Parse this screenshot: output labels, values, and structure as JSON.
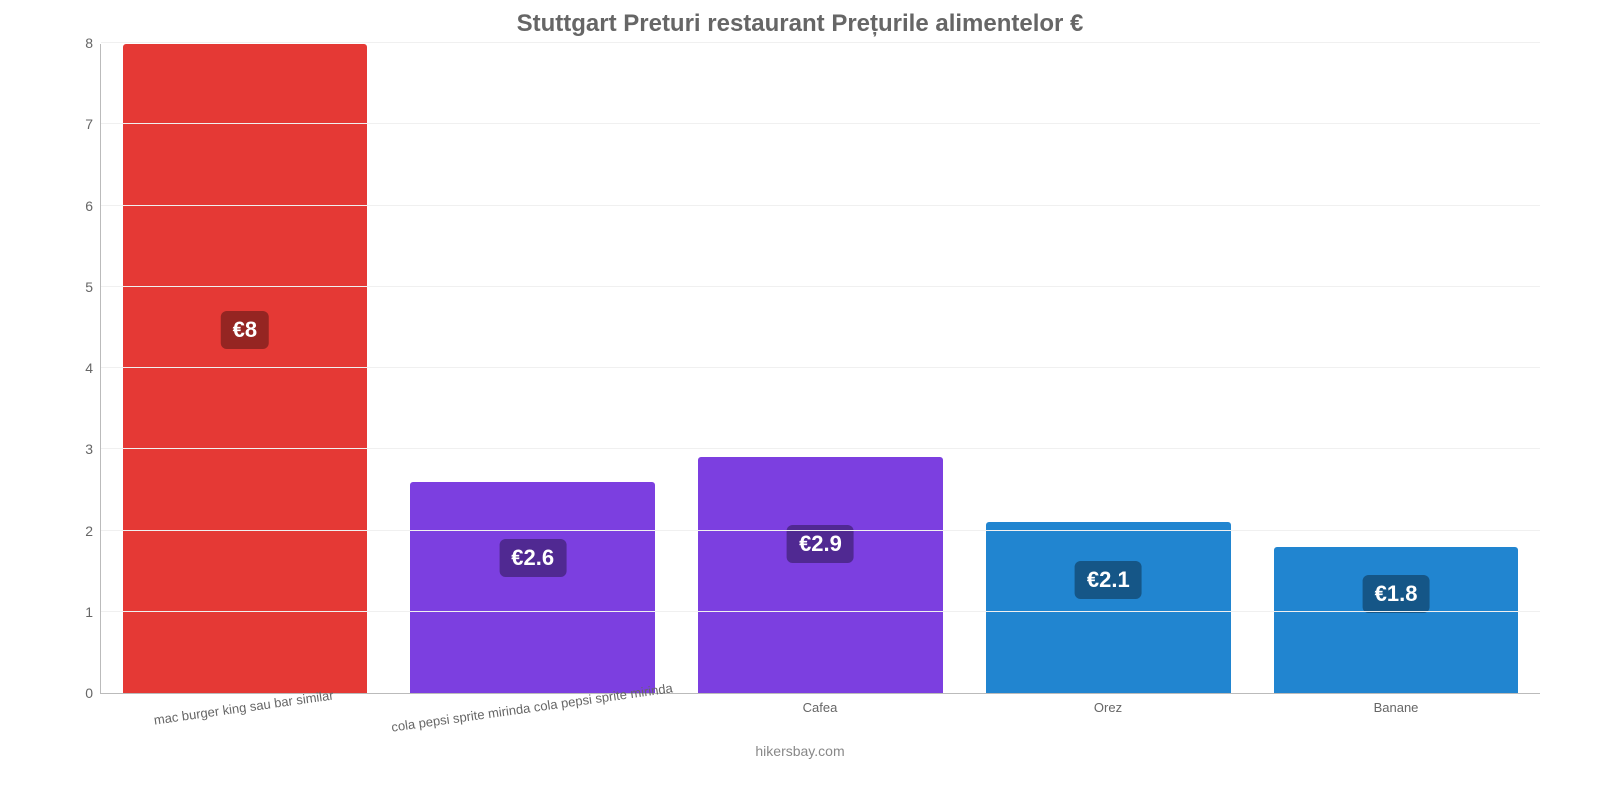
{
  "chart": {
    "type": "bar",
    "title": "Stuttgart Preturi restaurant Prețurile alimentelor €",
    "title_color": "#666666",
    "title_fontsize": 24,
    "background_color": "#ffffff",
    "grid_color": "#f0f0f0",
    "axis_color": "#bbbbbb",
    "ylim": [
      0,
      8
    ],
    "yticks": [
      0,
      1,
      2,
      3,
      4,
      5,
      6,
      7,
      8
    ],
    "bar_width_pct": 85,
    "categories": [
      "mac burger king sau bar similar",
      "cola pepsi sprite mirinda cola pepsi sprite mirinda",
      "Cafea",
      "Orez",
      "Banane"
    ],
    "values": [
      8,
      2.6,
      2.9,
      2.1,
      1.8
    ],
    "value_labels": [
      "€8",
      "€2.6",
      "€2.9",
      "€2.1",
      "€1.8"
    ],
    "bar_colors": [
      "#e53935",
      "#7c3fe0",
      "#7c3fe0",
      "#2185d0",
      "#2185d0"
    ],
    "label_bg": "rgba(0,0,0,0.35)",
    "label_text_color": "#ffffff",
    "label_fontsize": 22,
    "xlabel_rotation_first_two_deg": -8,
    "credits": "hikersbay.com",
    "credits_color": "#888888"
  }
}
